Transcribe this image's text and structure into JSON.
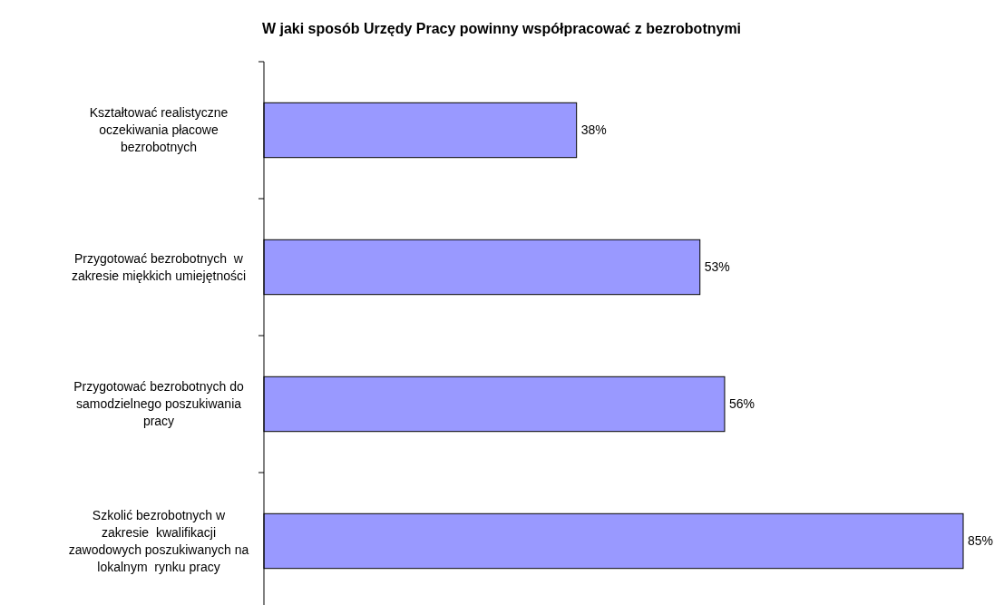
{
  "chart_data": {
    "type": "bar",
    "orientation": "horizontal",
    "title": "W jaki sposób Urzędy Pracy powinny współpracować z bezrobotnymi",
    "categories": [
      "Kształtować realistyczne\noczekiwania płacowe\nbezrobotnych",
      "Przygotować bezrobotnych  w\nzakresie miękkich umiejętności",
      "Przygotować bezrobotnych do\nsamodzielnego poszukiwania\npracy",
      "Szkolić bezrobotnych w\nzakresie  kwalifikacji\nzawodowych poszukiwanych na\nlokalnym  rynku pracy"
    ],
    "values": [
      38,
      53,
      56,
      85
    ],
    "color": "#9999ff",
    "data_labels": true,
    "value_labels": [
      "38%",
      "53%",
      "56%",
      "85%"
    ]
  }
}
